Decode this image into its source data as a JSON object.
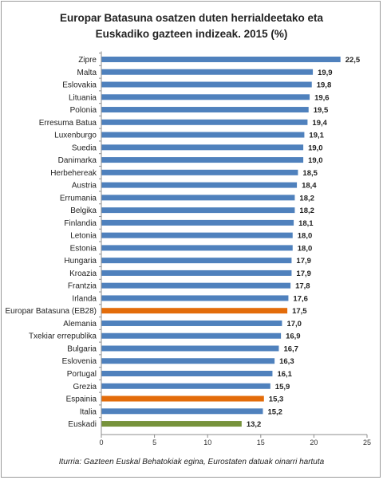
{
  "chart_data": {
    "type": "bar",
    "orientation": "horizontal",
    "title": [
      "Europar Batasuna osatzen duten herrialdeetako eta",
      "Euskadiko gazteen indizeak.  2015 (%)"
    ],
    "categories": [
      "Zipre",
      "Malta",
      "Eslovakia",
      "Lituania",
      "Polonia",
      "Erresuma Batua",
      "Luxenburgo",
      "Suedia",
      "Danimarka",
      "Herbehereak",
      "Austria",
      "Errumania",
      "Belgika",
      "Finlandia",
      "Letonia",
      "Estonia",
      "Hungaria",
      "Kroazia",
      "Frantzia",
      "Irlanda",
      "Europar Batasuna (EB28)",
      "Alemania",
      "Txekiar errepublika",
      "Bulgaria",
      "Eslovenia",
      "Portugal",
      "Grezia",
      "Espainia",
      "Italia",
      "Euskadi"
    ],
    "values": [
      22.5,
      19.9,
      19.8,
      19.6,
      19.5,
      19.4,
      19.1,
      19.0,
      19.0,
      18.5,
      18.4,
      18.2,
      18.2,
      18.1,
      18.0,
      18.0,
      17.9,
      17.9,
      17.8,
      17.6,
      17.5,
      17.0,
      16.9,
      16.7,
      16.3,
      16.1,
      15.9,
      15.3,
      15.2,
      13.2
    ],
    "value_labels": [
      "22,5",
      "19,9",
      "19,8",
      "19,6",
      "19,5",
      "19,4",
      "19,1",
      "19,0",
      "19,0",
      "18,5",
      "18,4",
      "18,2",
      "18,2",
      "18,1",
      "18,0",
      "18,0",
      "17,9",
      "17,9",
      "17,8",
      "17,6",
      "17,5",
      "17,0",
      "16,9",
      "16,7",
      "16,3",
      "16,1",
      "15,9",
      "15,3",
      "15,2",
      "13,2"
    ],
    "highlight": {
      "Europar Batasuna (EB28)": "orange",
      "Espainia": "orange",
      "Euskadi": "green"
    },
    "colors": {
      "default": "#4f81bd",
      "orange": "#e36c0a",
      "green": "#77933c"
    },
    "xlim": [
      0,
      25
    ],
    "xticks": [
      0,
      5,
      10,
      15,
      20,
      25
    ],
    "xlabel": "",
    "ylabel": "",
    "grid": false,
    "source": "Iturria: Gazteen Euskal Behatokiak egina, Eurostaten datuak oinarri hartuta"
  }
}
